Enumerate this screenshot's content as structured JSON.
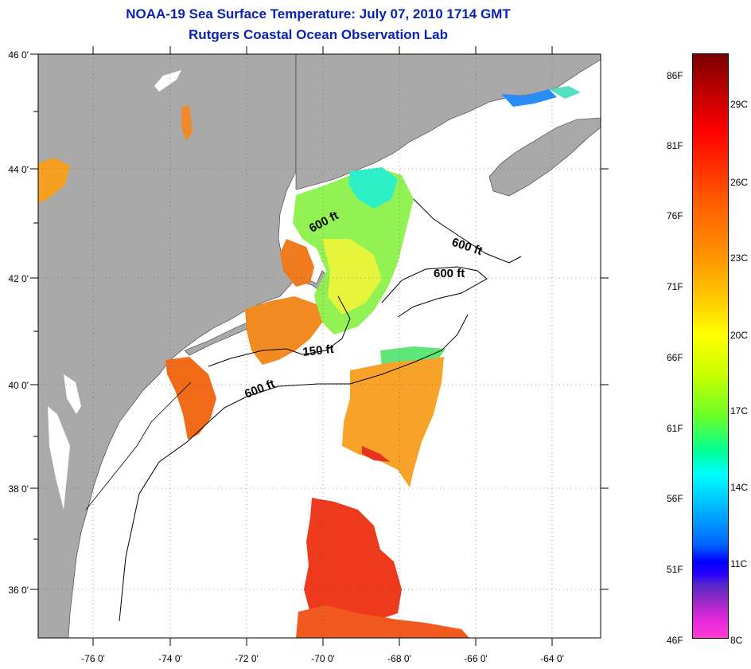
{
  "title": {
    "line1": "NOAA-19 Sea Surface Temperature:  July 07, 2010 1714 GMT",
    "line2": "Rutgers Coastal Ocean Observation Lab"
  },
  "axes": {
    "lat_labels": [
      "46 0'",
      "44 0'",
      "42 0'",
      "40 0'",
      "38 0'",
      "36 0'"
    ],
    "lon_labels": [
      "-76 0'",
      "-74 0'",
      "-72 0'",
      "-70 0'",
      "-68 0'",
      "-66 0'",
      "-64 0'"
    ]
  },
  "contours": {
    "labels": [
      "600 ft",
      "600 ft",
      "600 ft",
      "150 ft",
      "600 ft"
    ]
  },
  "colorbar": {
    "fahrenheit": [
      "86F",
      "81F",
      "76F",
      "71F",
      "66F",
      "61F",
      "56F",
      "51F",
      "46F"
    ],
    "celsius": [
      "29C",
      "26C",
      "23C",
      "20C",
      "17C",
      "14C",
      "11C",
      "8C"
    ]
  },
  "colors": {
    "land": "#a9a9a9",
    "title": "#0b23b5"
  }
}
